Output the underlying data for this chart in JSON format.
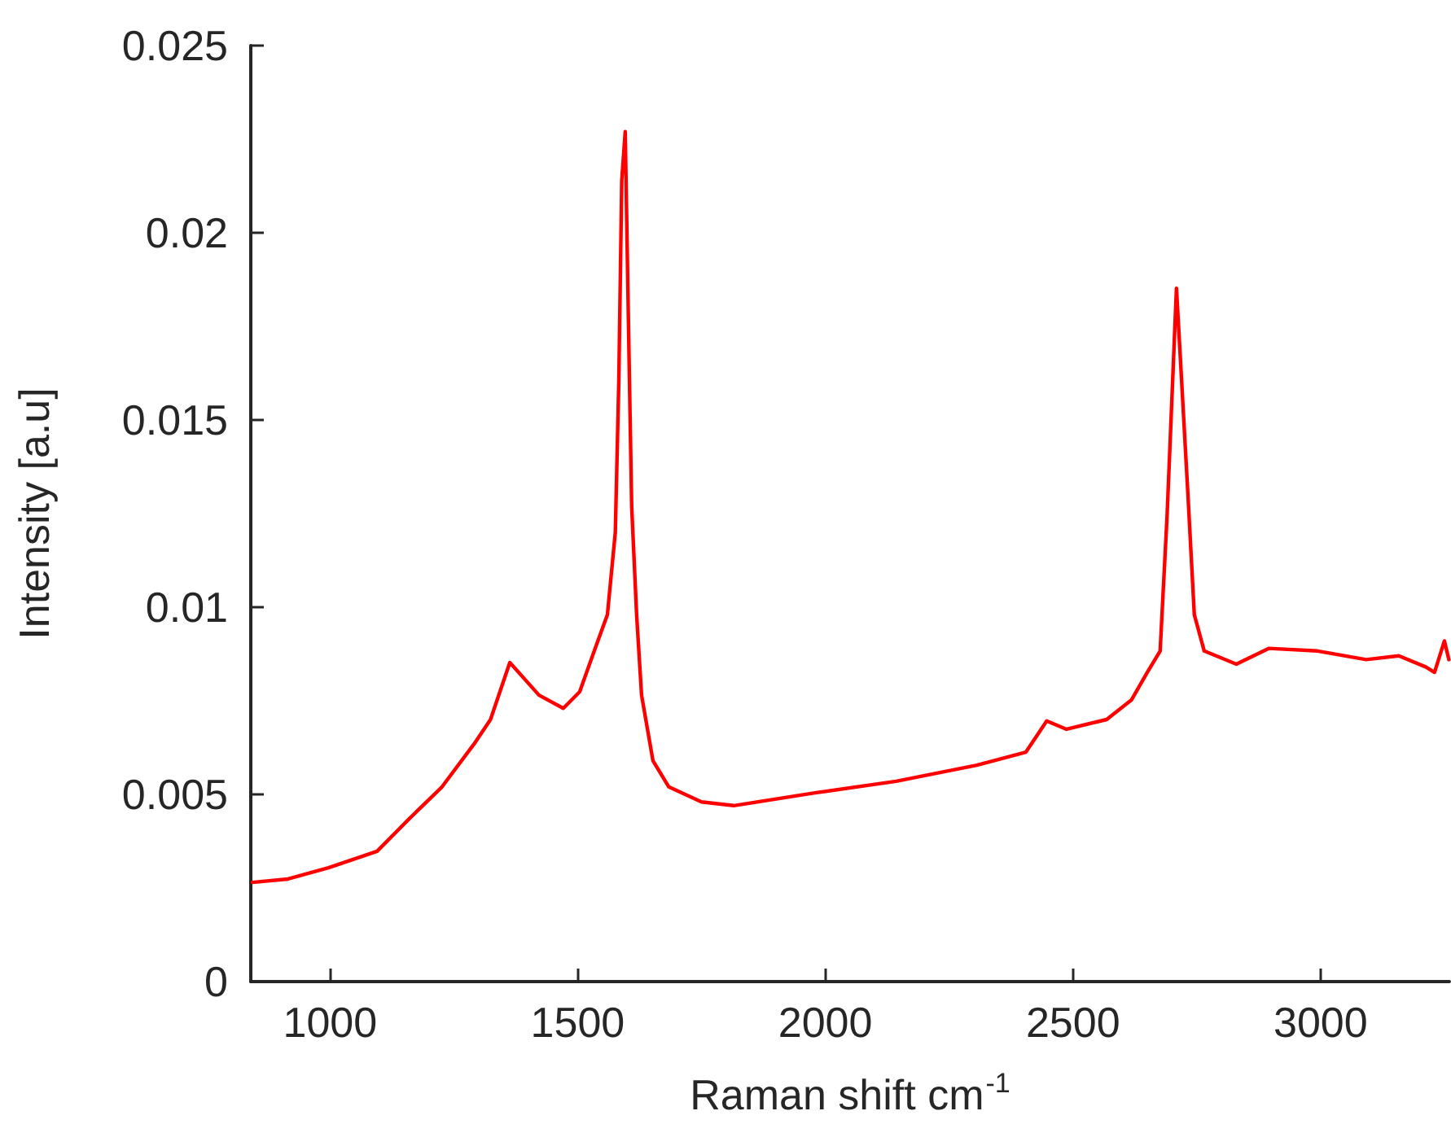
{
  "chart_data": {
    "type": "line",
    "xlabel": "Raman shift cm$^{-1}$",
    "ylabel": "Intensity [a.u]",
    "xlim": [
      840,
      3260
    ],
    "xticks": [
      1000,
      1500,
      2000,
      2500,
      3000
    ],
    "ylim": [
      0,
      0.025
    ],
    "yticks": [
      0,
      0.005,
      0.01,
      0.015,
      0.02,
      0.025
    ],
    "grid": false,
    "marker": "none",
    "line_style": "solid",
    "series": [
      {
        "color": "#ff0000",
        "x": [
          843,
          915,
          997,
          1095,
          1160,
          1226,
          1291,
          1324,
          1363,
          1422,
          1471,
          1504,
          1537,
          1560,
          1576,
          1583,
          1589,
          1596,
          1602,
          1609,
          1619,
          1629,
          1652,
          1684,
          1750,
          1815,
          1979,
          2143,
          2306,
          2405,
          2447,
          2487,
          2568,
          2618,
          2650,
          2676,
          2690,
          2709,
          2732,
          2745,
          2765,
          2830,
          2896,
          2994,
          3092,
          3158,
          3213,
          3230,
          3250,
          3259
        ],
        "values": [
          0.00265,
          0.00274,
          0.00304,
          0.00348,
          0.00435,
          0.0052,
          0.00635,
          0.007,
          0.00852,
          0.00765,
          0.0073,
          0.00774,
          0.00896,
          0.0098,
          0.012,
          0.016,
          0.0214,
          0.0227,
          0.018,
          0.0127,
          0.0098,
          0.00765,
          0.0059,
          0.0052,
          0.0048,
          0.0047,
          0.00504,
          0.00535,
          0.00578,
          0.00613,
          0.00696,
          0.00674,
          0.007,
          0.00752,
          0.00826,
          0.00883,
          0.01243,
          0.01852,
          0.01304,
          0.0098,
          0.00883,
          0.00848,
          0.0089,
          0.00883,
          0.0086,
          0.0087,
          0.0084,
          0.00826,
          0.0091,
          0.0086
        ]
      }
    ]
  }
}
